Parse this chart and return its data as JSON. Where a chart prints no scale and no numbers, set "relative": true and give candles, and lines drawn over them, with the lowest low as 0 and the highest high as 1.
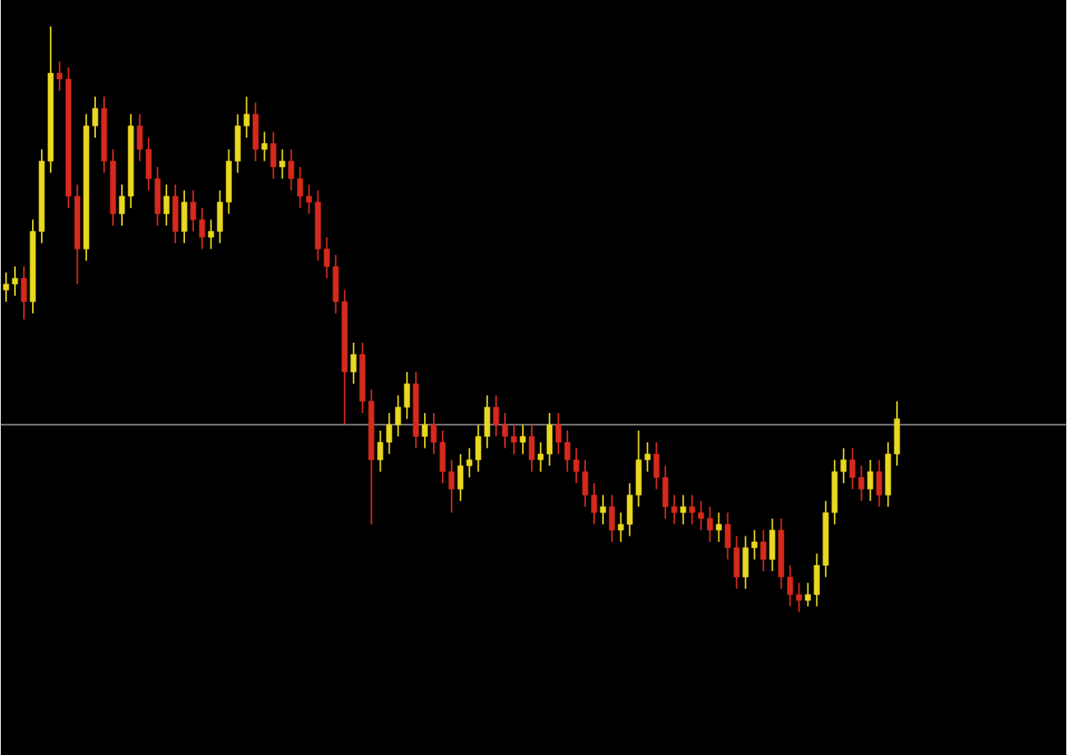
{
  "chart_data": {
    "type": "candlestick",
    "relative": true,
    "categories": [
      null,
      null,
      null,
      null,
      null,
      null,
      null,
      null,
      null,
      null,
      null,
      null,
      null,
      null,
      null,
      null,
      null,
      null,
      null,
      null,
      null,
      null,
      null,
      null,
      null,
      null,
      null,
      null,
      null,
      null,
      null,
      null,
      null,
      null,
      null,
      null,
      null,
      null,
      null,
      null,
      null,
      null,
      null,
      null,
      null,
      null,
      null,
      null,
      null,
      null,
      null,
      null,
      null,
      null,
      null,
      null,
      null,
      null,
      null,
      null,
      null,
      null,
      null,
      null,
      null,
      null,
      null,
      null,
      null,
      null,
      null,
      null,
      null,
      null,
      null,
      null,
      null,
      null,
      null,
      null,
      null,
      null,
      null,
      null,
      null,
      null,
      null,
      null,
      null,
      null,
      null,
      null,
      null,
      null,
      null,
      null,
      null,
      null,
      null,
      null,
      null
    ],
    "ohlc": [
      [
        0.55,
        0.58,
        0.53,
        0.56
      ],
      [
        0.56,
        0.59,
        0.54,
        0.57
      ],
      [
        0.57,
        0.59,
        0.5,
        0.53
      ],
      [
        0.53,
        0.67,
        0.51,
        0.65
      ],
      [
        0.65,
        0.79,
        0.63,
        0.77
      ],
      [
        0.77,
        1,
        0.75,
        0.92
      ],
      [
        0.92,
        0.94,
        0.89,
        0.91
      ],
      [
        0.91,
        0.93,
        0.69,
        0.71
      ],
      [
        0.71,
        0.73,
        0.56,
        0.62
      ],
      [
        0.62,
        0.85,
        0.6,
        0.83
      ],
      [
        0.83,
        0.88,
        0.81,
        0.86
      ],
      [
        0.86,
        0.88,
        0.75,
        0.77
      ],
      [
        0.77,
        0.79,
        0.66,
        0.68
      ],
      [
        0.68,
        0.73,
        0.66,
        0.71
      ],
      [
        0.71,
        0.85,
        0.69,
        0.83
      ],
      [
        0.83,
        0.85,
        0.77,
        0.79
      ],
      [
        0.79,
        0.81,
        0.72,
        0.74
      ],
      [
        0.74,
        0.76,
        0.66,
        0.68
      ],
      [
        0.68,
        0.73,
        0.66,
        0.71
      ],
      [
        0.71,
        0.73,
        0.63,
        0.65
      ],
      [
        0.65,
        0.72,
        0.63,
        0.7
      ],
      [
        0.7,
        0.72,
        0.65,
        0.67
      ],
      [
        0.67,
        0.69,
        0.62,
        0.64
      ],
      [
        0.64,
        0.67,
        0.62,
        0.65
      ],
      [
        0.65,
        0.72,
        0.63,
        0.7
      ],
      [
        0.7,
        0.79,
        0.68,
        0.77
      ],
      [
        0.77,
        0.85,
        0.75,
        0.83
      ],
      [
        0.83,
        0.88,
        0.81,
        0.85
      ],
      [
        0.85,
        0.87,
        0.77,
        0.79
      ],
      [
        0.79,
        0.82,
        0.77,
        0.8
      ],
      [
        0.8,
        0.82,
        0.74,
        0.76
      ],
      [
        0.76,
        0.79,
        0.74,
        0.77
      ],
      [
        0.77,
        0.79,
        0.72,
        0.74
      ],
      [
        0.74,
        0.76,
        0.69,
        0.71
      ],
      [
        0.71,
        0.73,
        0.68,
        0.7
      ],
      [
        0.7,
        0.72,
        0.6,
        0.62
      ],
      [
        0.62,
        0.64,
        0.57,
        0.59
      ],
      [
        0.59,
        0.61,
        0.51,
        0.53
      ],
      [
        0.53,
        0.55,
        0.32,
        0.41
      ],
      [
        0.41,
        0.46,
        0.39,
        0.44
      ],
      [
        0.44,
        0.46,
        0.34,
        0.36
      ],
      [
        0.36,
        0.38,
        0.15,
        0.26
      ],
      [
        0.26,
        0.31,
        0.24,
        0.29
      ],
      [
        0.29,
        0.34,
        0.27,
        0.32
      ],
      [
        0.32,
        0.37,
        0.3,
        0.35
      ],
      [
        0.35,
        0.41,
        0.33,
        0.39
      ],
      [
        0.39,
        0.41,
        0.28,
        0.3
      ],
      [
        0.3,
        0.34,
        0.28,
        0.32
      ],
      [
        0.32,
        0.34,
        0.27,
        0.29
      ],
      [
        0.29,
        0.31,
        0.22,
        0.24
      ],
      [
        0.24,
        0.26,
        0.17,
        0.21
      ],
      [
        0.21,
        0.27,
        0.19,
        0.25
      ],
      [
        0.25,
        0.28,
        0.23,
        0.26
      ],
      [
        0.26,
        0.32,
        0.24,
        0.3
      ],
      [
        0.3,
        0.37,
        0.28,
        0.35
      ],
      [
        0.35,
        0.37,
        0.3,
        0.32
      ],
      [
        0.32,
        0.34,
        0.28,
        0.3
      ],
      [
        0.3,
        0.32,
        0.27,
        0.29
      ],
      [
        0.29,
        0.32,
        0.27,
        0.3
      ],
      [
        0.3,
        0.32,
        0.24,
        0.26
      ],
      [
        0.26,
        0.29,
        0.24,
        0.27
      ],
      [
        0.27,
        0.34,
        0.25,
        0.32
      ],
      [
        0.32,
        0.34,
        0.27,
        0.29
      ],
      [
        0.29,
        0.31,
        0.24,
        0.26
      ],
      [
        0.26,
        0.28,
        0.22,
        0.24
      ],
      [
        0.24,
        0.26,
        0.18,
        0.2
      ],
      [
        0.2,
        0.22,
        0.15,
        0.17
      ],
      [
        0.17,
        0.2,
        0.15,
        0.18
      ],
      [
        0.18,
        0.2,
        0.12,
        0.14
      ],
      [
        0.14,
        0.17,
        0.12,
        0.15
      ],
      [
        0.15,
        0.22,
        0.13,
        0.2
      ],
      [
        0.2,
        0.31,
        0.18,
        0.26
      ],
      [
        0.26,
        0.29,
        0.24,
        0.27
      ],
      [
        0.27,
        0.29,
        0.21,
        0.23
      ],
      [
        0.23,
        0.25,
        0.16,
        0.18
      ],
      [
        0.18,
        0.2,
        0.15,
        0.17
      ],
      [
        0.17,
        0.2,
        0.15,
        0.18
      ],
      [
        0.18,
        0.2,
        0.15,
        0.17
      ],
      [
        0.17,
        0.19,
        0.14,
        0.16
      ],
      [
        0.16,
        0.18,
        0.12,
        0.14
      ],
      [
        0.14,
        0.17,
        0.12,
        0.15
      ],
      [
        0.15,
        0.17,
        0.09,
        0.11
      ],
      [
        0.11,
        0.13,
        0.04,
        0.06
      ],
      [
        0.06,
        0.13,
        0.04,
        0.11
      ],
      [
        0.11,
        0.14,
        0.09,
        0.12
      ],
      [
        0.12,
        0.14,
        0.07,
        0.09
      ],
      [
        0.09,
        0.16,
        0.07,
        0.14
      ],
      [
        0.14,
        0.16,
        0.04,
        0.06
      ],
      [
        0.06,
        0.08,
        0.01,
        0.03
      ],
      [
        0.03,
        0.05,
        0,
        0.02
      ],
      [
        0.02,
        0.05,
        0.01,
        0.03
      ],
      [
        0.03,
        0.1,
        0.01,
        0.08
      ],
      [
        0.08,
        0.19,
        0.06,
        0.17
      ],
      [
        0.17,
        0.26,
        0.15,
        0.24
      ],
      [
        0.24,
        0.28,
        0.22,
        0.26
      ],
      [
        0.26,
        0.28,
        0.21,
        0.23
      ],
      [
        0.23,
        0.25,
        0.19,
        0.21
      ],
      [
        0.21,
        0.26,
        0.19,
        0.24
      ],
      [
        0.24,
        0.26,
        0.18,
        0.2
      ],
      [
        0.2,
        0.29,
        0.18,
        0.27
      ],
      [
        0.27,
        0.36,
        0.25,
        0.33
      ]
    ],
    "colors": [
      "#e8d820",
      "#e8d820",
      "#d62a1c",
      "#e8d820",
      "#e8d820",
      "#e8d820",
      "#d62a1c",
      "#d62a1c",
      "#d62a1c",
      "#e8d820",
      "#e8d820",
      "#d62a1c",
      "#d62a1c",
      "#e8d820",
      "#e8d820",
      "#d62a1c",
      "#d62a1c",
      "#d62a1c",
      "#e8d820",
      "#d62a1c",
      "#e8d820",
      "#d62a1c",
      "#d62a1c",
      "#e8d820",
      "#e8d820",
      "#e8d820",
      "#e8d820",
      "#e8d820",
      "#d62a1c",
      "#e8d820",
      "#d62a1c",
      "#e8d820",
      "#d62a1c",
      "#d62a1c",
      "#d62a1c",
      "#d62a1c",
      "#d62a1c",
      "#d62a1c",
      "#d62a1c",
      "#e8d820",
      "#d62a1c",
      "#d62a1c",
      "#e8d820",
      "#e8d820",
      "#e8d820",
      "#e8d820",
      "#d62a1c",
      "#e8d820",
      "#d62a1c",
      "#d62a1c",
      "#d62a1c",
      "#e8d820",
      "#e8d820",
      "#e8d820",
      "#e8d820",
      "#d62a1c",
      "#d62a1c",
      "#d62a1c",
      "#e8d820",
      "#d62a1c",
      "#e8d820",
      "#e8d820",
      "#d62a1c",
      "#d62a1c",
      "#d62a1c",
      "#d62a1c",
      "#d62a1c",
      "#e8d820",
      "#d62a1c",
      "#e8d820",
      "#e8d820",
      "#e8d820",
      "#e8d820",
      "#d62a1c",
      "#d62a1c",
      "#d62a1c",
      "#e8d820",
      "#d62a1c",
      "#d62a1c",
      "#d62a1c",
      "#e8d820",
      "#d62a1c",
      "#d62a1c",
      "#e8d820",
      "#e8d820",
      "#d62a1c",
      "#e8d820",
      "#d62a1c",
      "#d62a1c",
      "#d62a1c",
      "#e8d820",
      "#e8d820",
      "#e8d820",
      "#e8d820",
      "#e8d820",
      "#d62a1c",
      "#d62a1c",
      "#e8d820",
      "#d62a1c",
      "#e8d820",
      "#e8d820"
    ],
    "ref_lines": [
      {
        "axis": "y",
        "value": 0.32,
        "color": "#808080"
      }
    ]
  }
}
